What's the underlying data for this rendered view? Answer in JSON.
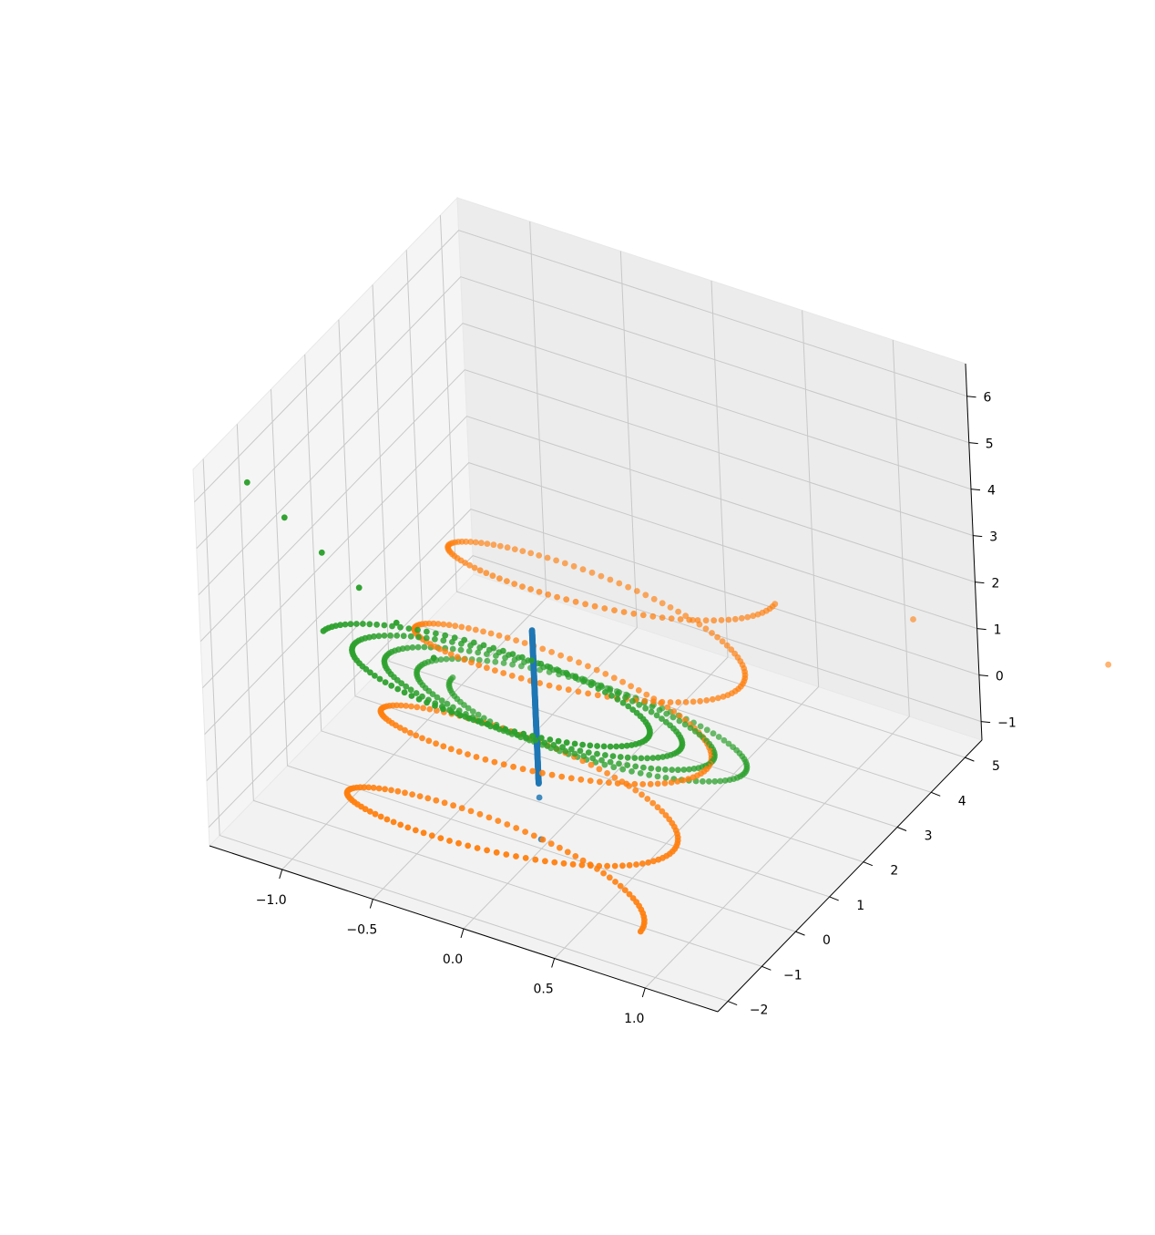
{
  "chart_data": {
    "type": "scatter3d",
    "title": "",
    "xlabel": "",
    "ylabel": "",
    "zlabel": "",
    "grid": true,
    "legend": "none",
    "xlim": [
      -1.4,
      1.4
    ],
    "ylim": [
      -2.3,
      5.5
    ],
    "zlim": [
      -1.4,
      6.7
    ],
    "x_ticks": [
      -1.0,
      -0.5,
      0.0,
      0.5,
      1.0
    ],
    "x_tick_labels": [
      "−1.0",
      "−0.5",
      "0.0",
      "0.5",
      "1.0"
    ],
    "y_ticks": [
      -2,
      -1,
      0,
      1,
      2,
      3,
      4,
      5
    ],
    "y_tick_labels": [
      "−2",
      "−1",
      "0",
      "1",
      "2",
      "3",
      "4",
      "5"
    ],
    "z_ticks": [
      -1,
      0,
      1,
      2,
      3,
      4,
      5,
      6
    ],
    "z_tick_labels": [
      "−1",
      "0",
      "1",
      "2",
      "3",
      "4",
      "5",
      "6"
    ],
    "series": [
      {
        "color": "#1f77b4",
        "shape": "line",
        "from": [
          0,
          0,
          0
        ],
        "to": [
          0,
          0,
          3.3
        ],
        "points": 300,
        "extra_points": [
          [
            0,
            0,
            -0.3
          ],
          [
            0,
            0,
            -1.2
          ]
        ]
      },
      {
        "color": "#ff7f0e",
        "shape": "helix",
        "radius": 0.85,
        "turns": 4,
        "z_range": [
          -0.9,
          3.0
        ],
        "y_range": [
          -1.6,
          2.6
        ],
        "phase": 0.0,
        "tail": [
          [
            1.5,
            3.2,
            3.05
          ],
          [
            2.5,
            3.6,
            3.05
          ],
          [
            3.5,
            4.0,
            3.05
          ],
          [
            4.5,
            4.4,
            3.05
          ],
          [
            5.5,
            4.8,
            3.05
          ]
        ]
      },
      {
        "color": "#2ca02c",
        "shape": "helix",
        "radius": 0.85,
        "turns": 4,
        "z_range": [
          -0.3,
          3.4
        ],
        "y_range": [
          2.0,
          -1.6
        ],
        "phase": 3.14159,
        "tail": [
          [
            -1.2,
            -1.8,
            6.3
          ],
          [
            -1.0,
            -1.8,
            5.8
          ],
          [
            -0.8,
            -1.8,
            5.3
          ],
          [
            -0.6,
            -1.8,
            4.8
          ],
          [
            -0.4,
            -1.8,
            4.3
          ],
          [
            -0.2,
            -1.8,
            3.8
          ]
        ]
      }
    ]
  }
}
